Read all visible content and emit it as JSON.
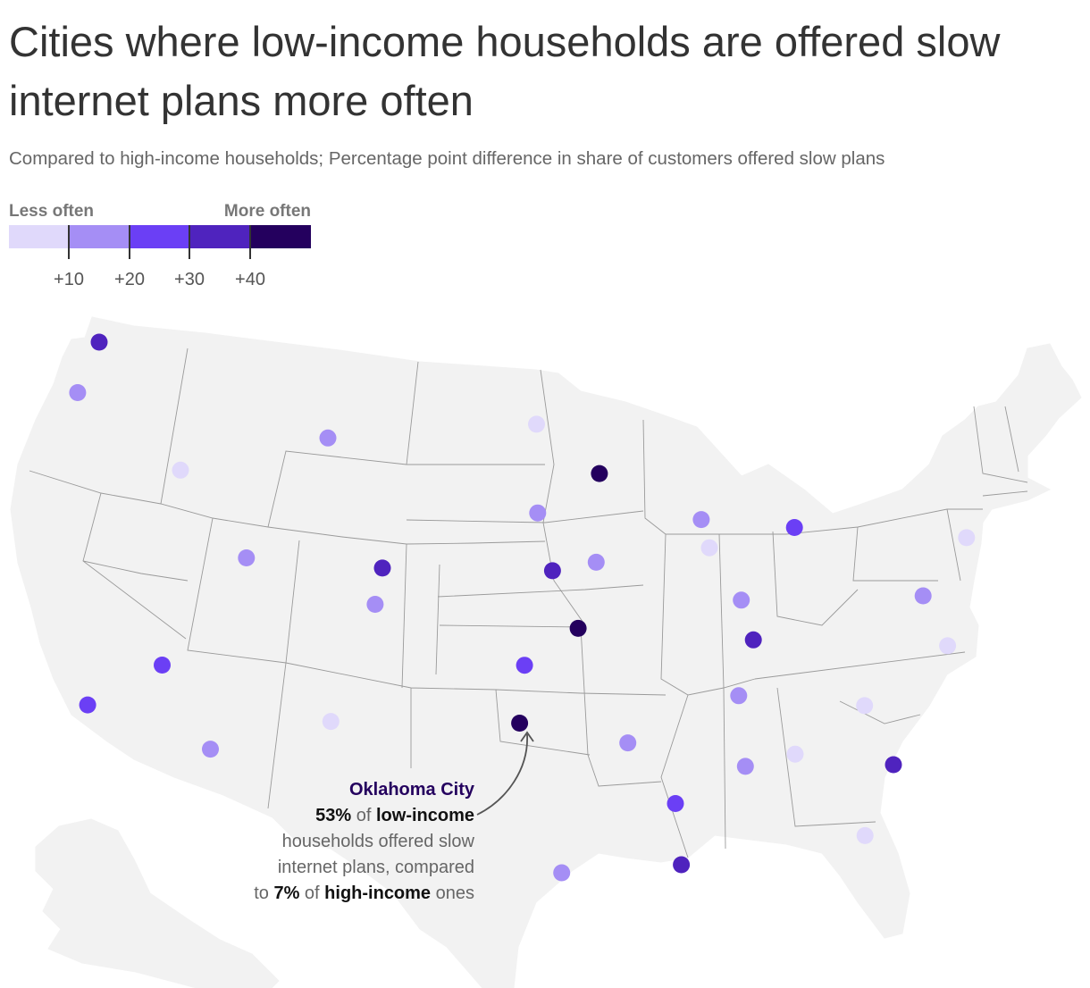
{
  "header": {
    "title": "Cities where low-income households are offered slow internet plans more often",
    "subtitle": "Compared to high-income households; Percentage point difference in share of customers offered slow plans"
  },
  "legend": {
    "low_label": "Less often",
    "high_label": "More often",
    "bins": [
      {
        "color": "#e0d9fb"
      },
      {
        "color": "#a58ef5"
      },
      {
        "color": "#6b3ff5"
      },
      {
        "color": "#4f23be"
      },
      {
        "color": "#24005e"
      }
    ],
    "ticks": [
      "+10",
      "+20",
      "+30",
      "+40"
    ]
  },
  "map": {
    "colors": {
      "land": "#f2f2f2",
      "border": "#9a9a9a"
    },
    "cities": [
      {
        "lon": -122.3,
        "lat": 47.6,
        "bin": 3
      },
      {
        "lon": -122.7,
        "lat": 45.5,
        "bin": 1
      },
      {
        "lon": -116.2,
        "lat": 43.6,
        "bin": 0
      },
      {
        "lon": -108.5,
        "lat": 45.8,
        "bin": 1
      },
      {
        "lon": -111.9,
        "lat": 40.8,
        "bin": 1
      },
      {
        "lon": -115.1,
        "lat": 36.2,
        "bin": 2
      },
      {
        "lon": -118.2,
        "lat": 34.1,
        "bin": 2
      },
      {
        "lon": -112.1,
        "lat": 33.4,
        "bin": 1
      },
      {
        "lon": -106.6,
        "lat": 35.1,
        "bin": 0
      },
      {
        "lon": -105.0,
        "lat": 39.7,
        "bin": 1
      },
      {
        "lon": -104.8,
        "lat": 41.1,
        "bin": 3
      },
      {
        "lon": -96.8,
        "lat": 46.9,
        "bin": 0
      },
      {
        "lon": -96.7,
        "lat": 43.5,
        "bin": 1
      },
      {
        "lon": -93.3,
        "lat": 44.98,
        "bin": 4
      },
      {
        "lon": -95.9,
        "lat": 41.3,
        "bin": 3
      },
      {
        "lon": -93.6,
        "lat": 41.6,
        "bin": 1
      },
      {
        "lon": -97.3,
        "lat": 37.7,
        "bin": 2
      },
      {
        "lon": -94.6,
        "lat": 39.1,
        "bin": 4
      },
      {
        "lon": -97.5,
        "lat": 35.5,
        "bin": 4
      },
      {
        "lon": -95.5,
        "lat": 29.8,
        "bin": 1
      },
      {
        "lon": -92.3,
        "lat": 34.7,
        "bin": 1
      },
      {
        "lon": -90.1,
        "lat": 29.95,
        "bin": 3
      },
      {
        "lon": -90.2,
        "lat": 32.3,
        "bin": 2
      },
      {
        "lon": -87.9,
        "lat": 43.0,
        "bin": 1
      },
      {
        "lon": -87.6,
        "lat": 41.9,
        "bin": 0
      },
      {
        "lon": -86.2,
        "lat": 39.8,
        "bin": 1
      },
      {
        "lon": -85.8,
        "lat": 38.25,
        "bin": 3
      },
      {
        "lon": -86.8,
        "lat": 36.2,
        "bin": 1
      },
      {
        "lon": -86.8,
        "lat": 33.5,
        "bin": 1
      },
      {
        "lon": -84.4,
        "lat": 33.75,
        "bin": 0
      },
      {
        "lon": -83.0,
        "lat": 42.3,
        "bin": 2
      },
      {
        "lon": -80.8,
        "lat": 35.2,
        "bin": 0
      },
      {
        "lon": -79.9,
        "lat": 32.8,
        "bin": 3
      },
      {
        "lon": -81.7,
        "lat": 30.3,
        "bin": 0
      },
      {
        "lon": -77.0,
        "lat": 38.9,
        "bin": 1
      },
      {
        "lon": -76.3,
        "lat": 36.85,
        "bin": 0
      },
      {
        "lon": -74.2,
        "lat": 40.7,
        "bin": 0
      }
    ]
  },
  "annotation": {
    "city": "Oklahoma City",
    "low_pct": "53%",
    "of1": " of ",
    "low_income": "low-income",
    "text1": "households offered slow",
    "text2": "internet plans, compared",
    "to": "to ",
    "high_pct": "7%",
    "of2": " of ",
    "high_income": "high-income",
    "ones": " ones"
  }
}
